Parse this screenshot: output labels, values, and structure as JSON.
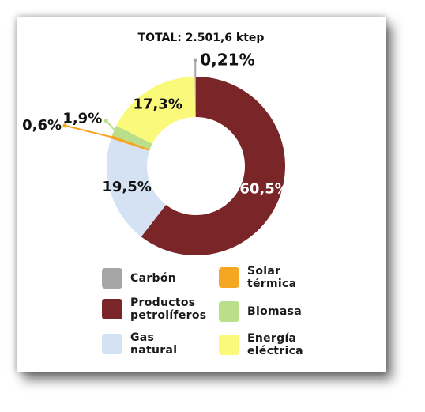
{
  "chart_data": {
    "type": "pie",
    "variant": "donut",
    "title": "TOTAL: 2.501,6 ktep",
    "slices": [
      {
        "name": "Productos\npetrolíferos",
        "value": 60.5,
        "label": "60,5%",
        "color": "#7a2528",
        "label_color": "#ffffff",
        "label_place": "inside"
      },
      {
        "name": "Gas\nnatural",
        "value": 19.5,
        "label": "19,5%",
        "color": "#d4e2f4",
        "label_color": "#111111",
        "label_place": "inside"
      },
      {
        "name": "Solar\ntérmica",
        "value": 0.6,
        "label": "0,6%",
        "color": "#f5a623",
        "label_color": "#111111",
        "label_place": "callout-left-lower"
      },
      {
        "name": "Biomasa",
        "value": 1.9,
        "label": "1,9%",
        "color": "#b9df8a",
        "label_color": "#111111",
        "label_place": "callout-left-upper"
      },
      {
        "name": "Energía\neléctrica",
        "value": 17.3,
        "label": "17,3%",
        "color": "#fbf97a",
        "label_color": "#111111",
        "label_place": "inside"
      },
      {
        "name": "Carbón",
        "value": 0.21,
        "label": "0,21%",
        "color": "#a6a6a6",
        "label_color": "#111111",
        "label_place": "callout-top"
      }
    ],
    "legend": [
      "Carbón",
      "Solar\ntérmica",
      "Productos\npetrolíferos",
      "Biomasa",
      "Gas\nnatural",
      "Energía\neléctrica"
    ],
    "legend_placement": "bottom"
  }
}
